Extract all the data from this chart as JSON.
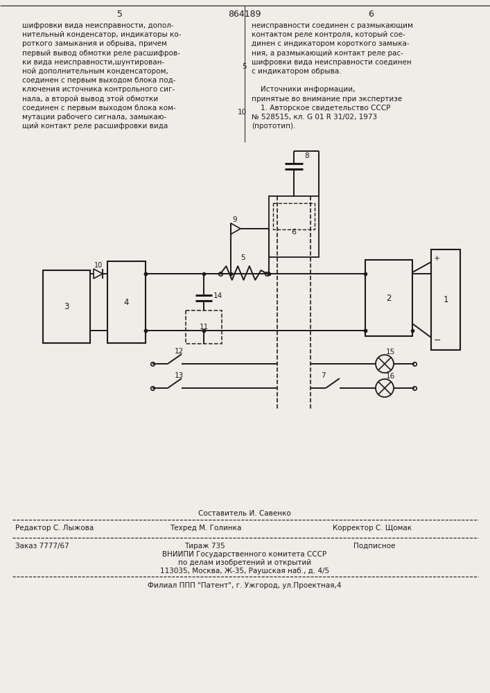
{
  "bg_color": "#f0ede8",
  "line_color": "#1a1a1a",
  "text_color": "#1a1a1a",
  "page_num_left": "5",
  "page_num_center": "864189",
  "page_num_right": "6",
  "left_col_text": [
    "шифровки вида неисправности, допол-",
    "нительный конденсатор, индикаторы ко-",
    "роткого замыкания и обрыва, причем",
    "первый вывод обмотки реле расшифров-",
    "ки вида неисправности,шунтирован-",
    "ной дополнительным конденсатором,",
    "соединен с первым выходом блока под-",
    "ключения источника контрольного сиг-",
    "нала, а второй вывод этой обмотки",
    "соединен с первым выходом блока ком-",
    "мутации рабочего сигнала, замыкаю-",
    "щий контакт реле расшифровки вида"
  ],
  "right_col_text_lines": [
    "неисправности соединен с размыкающим",
    "контактом реле контроля, который сое-",
    "динен с индикатором короткого замыка-",
    "ния, а размыкающий контакт реле рас-",
    "шифровки вида неисправности соединен",
    "с индикатором обрыва.",
    "",
    "    Источники информации,",
    "принятые во внимание при экспертизе",
    "    1. Авторское свидетельство СССР",
    "№ 528515, кл. G 01 R 31/02, 1973",
    "(прототип)."
  ],
  "line_num_5": "5",
  "line_num_10": "10",
  "footer_composer": "Составитель И. Савенко",
  "footer_editor": "Редактор С. Лыжова",
  "footer_techred": "Техред М. Голинка",
  "footer_corrector": "Корректор С. Щомак",
  "footer_order": "Заказ 7777/67",
  "footer_tirazh": "Тираж 735",
  "footer_podpisnoe": "Подписное",
  "footer_vniipи": "ВНИИПИ Государственного комитета СССР",
  "footer_po": "по делам изобретений и открытий",
  "footer_addr": "113035, Москва, Ж-35, Раушская наб., д. 4/5",
  "footer_filial": "Филиал ППП \"Патент\", г. Ужгород, ул.Проектная,4"
}
